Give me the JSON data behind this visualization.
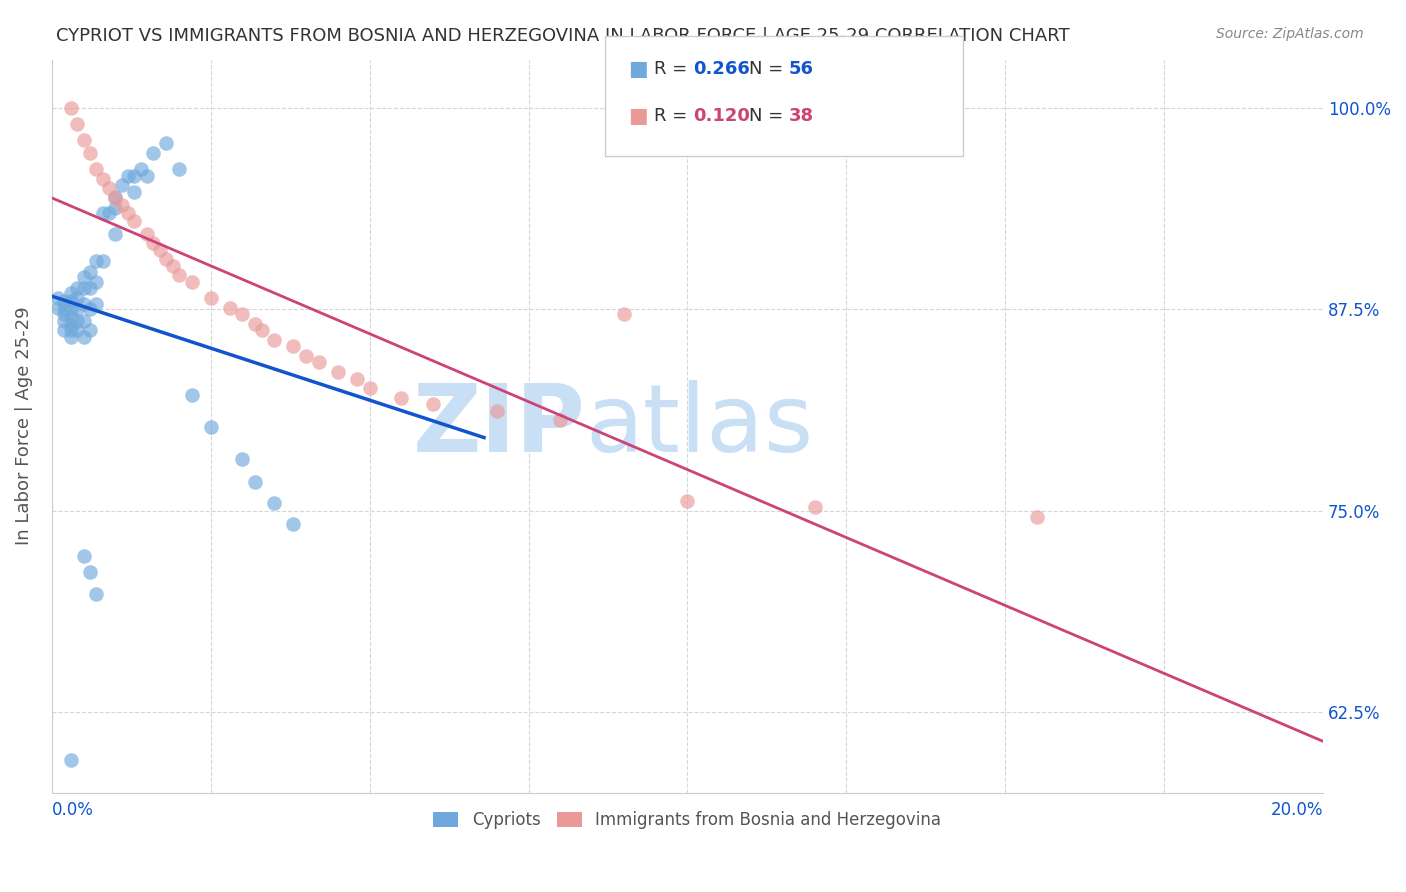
{
  "title": "CYPRIOT VS IMMIGRANTS FROM BOSNIA AND HERZEGOVINA IN LABOR FORCE | AGE 25-29 CORRELATION CHART",
  "source": "Source: ZipAtlas.com",
  "ylabel": "In Labor Force | Age 25-29",
  "ytick_labels": [
    "62.5%",
    "75.0%",
    "87.5%",
    "100.0%"
  ],
  "ytick_values": [
    0.625,
    0.75,
    0.875,
    1.0
  ],
  "xlim": [
    0.0,
    0.2
  ],
  "ylim": [
    0.575,
    1.03
  ],
  "legend_r_blue": "0.266",
  "legend_n_blue": "56",
  "legend_r_pink": "0.120",
  "legend_n_pink": "38",
  "blue_color": "#6fa8dc",
  "pink_color": "#ea9999",
  "blue_line_color": "#1155cc",
  "pink_line_color": "#cc4477",
  "watermark_zip": "ZIP",
  "watermark_atlas": "atlas",
  "watermark_color_zip": "#c8dff5",
  "watermark_color_atlas": "#c8dff5",
  "legend_label_blue": "Cypriots",
  "legend_label_pink": "Immigrants from Bosnia and Herzegovina",
  "blue_points_x": [
    0.001,
    0.001,
    0.002,
    0.002,
    0.002,
    0.002,
    0.002,
    0.003,
    0.003,
    0.003,
    0.003,
    0.003,
    0.003,
    0.003,
    0.004,
    0.004,
    0.004,
    0.004,
    0.004,
    0.005,
    0.005,
    0.005,
    0.005,
    0.005,
    0.006,
    0.006,
    0.006,
    0.006,
    0.007,
    0.007,
    0.007,
    0.008,
    0.008,
    0.009,
    0.01,
    0.01,
    0.01,
    0.011,
    0.012,
    0.013,
    0.013,
    0.014,
    0.015,
    0.016,
    0.018,
    0.02,
    0.022,
    0.025,
    0.03,
    0.032,
    0.035,
    0.038,
    0.005,
    0.006,
    0.007,
    0.003
  ],
  "blue_points_y": [
    0.882,
    0.876,
    0.88,
    0.875,
    0.872,
    0.868,
    0.862,
    0.885,
    0.88,
    0.875,
    0.87,
    0.865,
    0.862,
    0.858,
    0.888,
    0.882,
    0.875,
    0.868,
    0.862,
    0.895,
    0.888,
    0.878,
    0.868,
    0.858,
    0.898,
    0.888,
    0.875,
    0.862,
    0.905,
    0.892,
    0.878,
    0.935,
    0.905,
    0.935,
    0.945,
    0.938,
    0.922,
    0.952,
    0.958,
    0.958,
    0.948,
    0.962,
    0.958,
    0.972,
    0.978,
    0.962,
    0.822,
    0.802,
    0.782,
    0.768,
    0.755,
    0.742,
    0.722,
    0.712,
    0.698,
    0.595
  ],
  "pink_points_x": [
    0.003,
    0.004,
    0.005,
    0.006,
    0.007,
    0.008,
    0.009,
    0.01,
    0.011,
    0.012,
    0.013,
    0.015,
    0.016,
    0.017,
    0.018,
    0.019,
    0.02,
    0.022,
    0.025,
    0.028,
    0.03,
    0.032,
    0.033,
    0.035,
    0.038,
    0.04,
    0.042,
    0.045,
    0.048,
    0.05,
    0.055,
    0.06,
    0.07,
    0.08,
    0.09,
    0.1,
    0.12,
    0.155
  ],
  "pink_points_y": [
    1.0,
    0.99,
    0.98,
    0.972,
    0.962,
    0.956,
    0.95,
    0.944,
    0.94,
    0.935,
    0.93,
    0.922,
    0.916,
    0.912,
    0.906,
    0.902,
    0.896,
    0.892,
    0.882,
    0.876,
    0.872,
    0.866,
    0.862,
    0.856,
    0.852,
    0.846,
    0.842,
    0.836,
    0.832,
    0.826,
    0.82,
    0.816,
    0.812,
    0.806,
    0.872,
    0.756,
    0.752,
    0.746
  ]
}
